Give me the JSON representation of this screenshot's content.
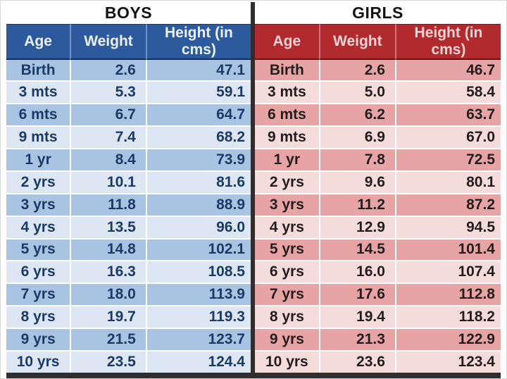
{
  "chart_data": [
    {
      "type": "table",
      "title": "BOYS",
      "columns": [
        "Age",
        "Weight",
        "Height (in cms)"
      ],
      "rows": [
        [
          "Birth",
          "2.6",
          "47.1"
        ],
        [
          "3 mts",
          "5.3",
          "59.1"
        ],
        [
          "6 mts",
          "6.7",
          "64.7"
        ],
        [
          "9 mts",
          "7.4",
          "68.2"
        ],
        [
          "1 yr",
          "8.4",
          "73.9"
        ],
        [
          "2 yrs",
          "10.1",
          "81.6"
        ],
        [
          "3 yrs",
          "11.8",
          "88.9"
        ],
        [
          "4 yrs",
          "13.5",
          "96.0"
        ],
        [
          "5 yrs",
          "14.8",
          "102.1"
        ],
        [
          "6 yrs",
          "16.3",
          "108.5"
        ],
        [
          "7 yrs",
          "18.0",
          "113.9"
        ],
        [
          "8 yrs",
          "19.7",
          "119.3"
        ],
        [
          "9 yrs",
          "21.5",
          "123.7"
        ],
        [
          "10 yrs",
          "23.5",
          "124.4"
        ]
      ]
    },
    {
      "type": "table",
      "title": "GIRLS",
      "columns": [
        "Age",
        "Weight",
        "Height (in cms)"
      ],
      "rows": [
        [
          "Birth",
          "2.6",
          "46.7"
        ],
        [
          "3 mts",
          "5.0",
          "58.4"
        ],
        [
          "6 mts",
          "6.2",
          "63.7"
        ],
        [
          "9 mts",
          "6.9",
          "67.0"
        ],
        [
          "1 yr",
          "7.8",
          "72.5"
        ],
        [
          "2 yrs",
          "9.6",
          "80.1"
        ],
        [
          "3 yrs",
          "11.2",
          "87.2"
        ],
        [
          "4 yrs",
          "12.9",
          "94.5"
        ],
        [
          "5 yrs",
          "14.5",
          "101.4"
        ],
        [
          "6 yrs",
          "16.0",
          "107.4"
        ],
        [
          "7 yrs",
          "17.6",
          "112.8"
        ],
        [
          "8 yrs",
          "19.4",
          "118.2"
        ],
        [
          "9 yrs",
          "21.3",
          "122.9"
        ],
        [
          "10 yrs",
          "23.6",
          "123.4"
        ]
      ]
    }
  ],
  "colors": {
    "page_bg": "#ffffff",
    "title_text": "#141414",
    "divider": "#2e2e2e",
    "boys_header_bg": "#2d5a9d",
    "boys_header_text": "#e9f1fb",
    "boys_row_odd": "#a9c4e3",
    "boys_row_even": "#dce7f3",
    "boys_text": "#1c3a66",
    "girls_header_bg": "#b12b2e",
    "girls_header_text": "#f4d3d3",
    "girls_row_odd": "#e6a5a4",
    "girls_row_even": "#f4dcda",
    "girls_text": "#241d1d"
  }
}
